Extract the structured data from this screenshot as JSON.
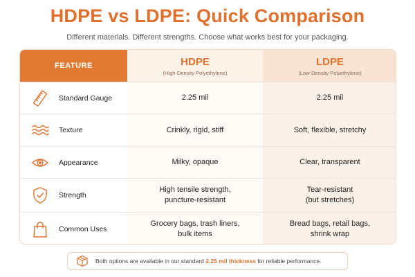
{
  "title": "HDPE vs LDPE: Quick Comparison",
  "subtitle": "Different materials. Different strengths. Choose what works best for your packaging.",
  "header": {
    "feature": "FEATURE",
    "hdpe": {
      "name": "HDPE",
      "sub": "(High-Density Polyethylene)"
    },
    "ldpe": {
      "name": "LDPE",
      "sub": "(Low-Density Polyethylene)"
    }
  },
  "rows": [
    {
      "icon": "ruler-icon",
      "feature": "Standard Gauge",
      "hdpe_1": "2.25 mil",
      "hdpe_2": "",
      "ldpe_1": "2.25 mil",
      "ldpe_2": ""
    },
    {
      "icon": "waves-icon",
      "feature": "Texture",
      "hdpe_1": "Crinkly, rigid, stiff",
      "hdpe_2": "",
      "ldpe_1": "Soft, flexible, stretchy",
      "ldpe_2": ""
    },
    {
      "icon": "eye-icon",
      "feature": "Appearance",
      "hdpe_1": "Milky, opaque",
      "hdpe_2": "",
      "ldpe_1": "Clear, transparent",
      "ldpe_2": ""
    },
    {
      "icon": "shield-check-icon",
      "feature": "Strength",
      "hdpe_1": "High tensile strength,",
      "hdpe_2": "puncture-resistant",
      "ldpe_1": "Tear-resistant",
      "ldpe_2": "(but stretches)"
    },
    {
      "icon": "shopping-bag-icon",
      "feature": "Common Uses",
      "hdpe_1": "Grocery bags, trash liners,",
      "hdpe_2": "bulk items",
      "ldpe_1": "Bread bags, retail bags,",
      "ldpe_2": "shrink wrap"
    }
  ],
  "footer": {
    "icon": "box-icon",
    "pre": "Both options are available in our standard ",
    "highlight": "2.25 mil thickness",
    "post": " for reliable performance."
  },
  "colors": {
    "accent": "#e0702b",
    "header_feature_bg": "#e07a33"
  }
}
